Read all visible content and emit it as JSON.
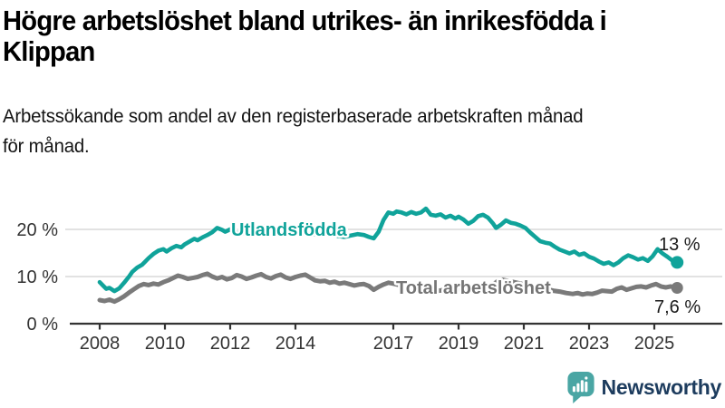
{
  "header": {
    "title_line1": "Högre arbetslöshet bland utrikes- än inrikesfödda i",
    "title_line2": "Klippan",
    "subtitle_line1": "Arbetssökande som andel av den registerbaserade arbetskraften månad",
    "subtitle_line2": "för månad."
  },
  "colors": {
    "teal": "#10a39a",
    "gray": "#7a7a7a",
    "gray_label": "#757575",
    "grid": "#d9d9d9",
    "axis": "#333333",
    "end_label": "#1a1a1a",
    "logo_teal": "#4aa6a4",
    "logo_navy": "#1d3c5e"
  },
  "chart_data": {
    "type": "line",
    "title": "Högre arbetslöshet bland utrikes- än inrikesfödda i Klippan",
    "subtitle": "Arbetssökande som andel av den registerbaserade arbetskraften månad för månad.",
    "xlabel": "",
    "ylabel": "",
    "xlim": [
      2007.9,
      2026.1
    ],
    "ylim": [
      0,
      26
    ],
    "grid": true,
    "legend_position": "inline-labels",
    "x_ticks": [
      {
        "value": 2008,
        "label": "2008"
      },
      {
        "value": 2010,
        "label": "2010"
      },
      {
        "value": 2012,
        "label": "2012"
      },
      {
        "value": 2014,
        "label": "2014"
      },
      {
        "value": 2017,
        "label": "2017"
      },
      {
        "value": 2019,
        "label": "2019"
      },
      {
        "value": 2021,
        "label": "2021"
      },
      {
        "value": 2023,
        "label": "2023"
      },
      {
        "value": 2025,
        "label": "2025"
      }
    ],
    "y_ticks": [
      {
        "value": 0,
        "label": "0 %"
      },
      {
        "value": 10,
        "label": "10 %"
      },
      {
        "value": 20,
        "label": "20 %"
      }
    ],
    "series": [
      {
        "name": "Utlandsfödda",
        "color": "#10a39a",
        "end_label": "13 %",
        "end_value": 13.0,
        "points": [
          [
            2008.0,
            8.8
          ],
          [
            2008.1,
            8.1
          ],
          [
            2008.2,
            7.4
          ],
          [
            2008.3,
            7.6
          ],
          [
            2008.45,
            6.9
          ],
          [
            2008.6,
            7.5
          ],
          [
            2008.75,
            8.7
          ],
          [
            2008.9,
            10.0
          ],
          [
            2009.0,
            11.0
          ],
          [
            2009.15,
            11.9
          ],
          [
            2009.3,
            12.5
          ],
          [
            2009.4,
            13.2
          ],
          [
            2009.5,
            13.9
          ],
          [
            2009.65,
            14.8
          ],
          [
            2009.8,
            15.5
          ],
          [
            2009.95,
            15.8
          ],
          [
            2010.05,
            15.3
          ],
          [
            2010.2,
            16.0
          ],
          [
            2010.35,
            16.5
          ],
          [
            2010.5,
            16.2
          ],
          [
            2010.6,
            16.8
          ],
          [
            2010.75,
            17.4
          ],
          [
            2010.9,
            18.0
          ],
          [
            2011.0,
            17.7
          ],
          [
            2011.15,
            18.3
          ],
          [
            2011.3,
            18.8
          ],
          [
            2011.45,
            19.4
          ],
          [
            2011.6,
            20.3
          ],
          [
            2011.75,
            19.9
          ],
          [
            2011.85,
            19.5
          ],
          [
            2012.0,
            20.0
          ],
          [
            2012.15,
            19.4
          ],
          [
            2012.3,
            19.0
          ],
          [
            2012.45,
            19.2
          ],
          [
            2012.6,
            19.7
          ],
          [
            2012.75,
            20.1
          ],
          [
            2012.9,
            20.4
          ],
          [
            2013.1,
            20.6
          ],
          [
            2013.3,
            20.2
          ],
          [
            2013.5,
            19.8
          ],
          [
            2013.7,
            19.4
          ],
          [
            2013.9,
            19.7
          ],
          [
            2014.1,
            19.9
          ],
          [
            2014.3,
            19.4
          ],
          [
            2014.5,
            18.9
          ],
          [
            2014.7,
            19.1
          ],
          [
            2014.9,
            19.3
          ],
          [
            2015.1,
            18.9
          ],
          [
            2015.3,
            18.6
          ],
          [
            2015.5,
            18.4
          ],
          [
            2015.7,
            18.7
          ],
          [
            2015.9,
            19.0
          ],
          [
            2016.1,
            18.8
          ],
          [
            2016.25,
            18.4
          ],
          [
            2016.4,
            18.1
          ],
          [
            2016.55,
            19.5
          ],
          [
            2016.7,
            22.0
          ],
          [
            2016.85,
            23.6
          ],
          [
            2017.0,
            23.3
          ],
          [
            2017.1,
            23.8
          ],
          [
            2017.25,
            23.6
          ],
          [
            2017.4,
            23.2
          ],
          [
            2017.55,
            23.7
          ],
          [
            2017.7,
            23.3
          ],
          [
            2017.85,
            23.6
          ],
          [
            2018.0,
            24.4
          ],
          [
            2018.15,
            23.1
          ],
          [
            2018.3,
            22.9
          ],
          [
            2018.45,
            23.2
          ],
          [
            2018.6,
            22.5
          ],
          [
            2018.75,
            22.9
          ],
          [
            2018.9,
            22.3
          ],
          [
            2019.0,
            22.7
          ],
          [
            2019.15,
            22.1
          ],
          [
            2019.3,
            21.2
          ],
          [
            2019.45,
            21.8
          ],
          [
            2019.6,
            22.8
          ],
          [
            2019.75,
            23.1
          ],
          [
            2019.9,
            22.5
          ],
          [
            2020.05,
            21.3
          ],
          [
            2020.15,
            20.3
          ],
          [
            2020.3,
            21.0
          ],
          [
            2020.45,
            21.9
          ],
          [
            2020.6,
            21.4
          ],
          [
            2020.75,
            21.2
          ],
          [
            2020.9,
            20.8
          ],
          [
            2021.05,
            20.3
          ],
          [
            2021.2,
            19.3
          ],
          [
            2021.35,
            18.4
          ],
          [
            2021.5,
            17.5
          ],
          [
            2021.65,
            17.2
          ],
          [
            2021.8,
            17.0
          ],
          [
            2021.95,
            16.3
          ],
          [
            2022.1,
            15.7
          ],
          [
            2022.25,
            15.3
          ],
          [
            2022.4,
            14.9
          ],
          [
            2022.55,
            15.3
          ],
          [
            2022.7,
            14.6
          ],
          [
            2022.85,
            14.9
          ],
          [
            2023.0,
            14.2
          ],
          [
            2023.15,
            13.8
          ],
          [
            2023.3,
            13.2
          ],
          [
            2023.45,
            12.7
          ],
          [
            2023.6,
            13.0
          ],
          [
            2023.75,
            12.4
          ],
          [
            2023.9,
            13.0
          ],
          [
            2024.05,
            13.9
          ],
          [
            2024.2,
            14.5
          ],
          [
            2024.35,
            14.1
          ],
          [
            2024.5,
            13.6
          ],
          [
            2024.65,
            13.9
          ],
          [
            2024.8,
            13.3
          ],
          [
            2024.95,
            14.3
          ],
          [
            2025.1,
            15.8
          ],
          [
            2025.25,
            14.9
          ],
          [
            2025.4,
            14.2
          ],
          [
            2025.55,
            13.4
          ],
          [
            2025.7,
            13.0
          ]
        ]
      },
      {
        "name": "Total arbetslöshet",
        "color": "#7a7a7a",
        "end_label": "7,6 %",
        "end_value": 7.6,
        "points": [
          [
            2008.0,
            5.0
          ],
          [
            2008.15,
            4.8
          ],
          [
            2008.3,
            5.1
          ],
          [
            2008.45,
            4.7
          ],
          [
            2008.6,
            5.2
          ],
          [
            2008.75,
            5.8
          ],
          [
            2008.9,
            6.6
          ],
          [
            2009.05,
            7.3
          ],
          [
            2009.2,
            8.0
          ],
          [
            2009.35,
            8.4
          ],
          [
            2009.5,
            8.2
          ],
          [
            2009.65,
            8.5
          ],
          [
            2009.8,
            8.3
          ],
          [
            2009.95,
            8.8
          ],
          [
            2010.1,
            9.2
          ],
          [
            2010.25,
            9.7
          ],
          [
            2010.4,
            10.2
          ],
          [
            2010.55,
            9.9
          ],
          [
            2010.7,
            9.5
          ],
          [
            2010.85,
            9.7
          ],
          [
            2011.0,
            9.9
          ],
          [
            2011.15,
            10.3
          ],
          [
            2011.3,
            10.6
          ],
          [
            2011.45,
            10.0
          ],
          [
            2011.6,
            9.6
          ],
          [
            2011.75,
            9.9
          ],
          [
            2011.9,
            9.4
          ],
          [
            2012.05,
            9.7
          ],
          [
            2012.2,
            10.3
          ],
          [
            2012.35,
            10.0
          ],
          [
            2012.5,
            9.5
          ],
          [
            2012.65,
            9.8
          ],
          [
            2012.8,
            10.2
          ],
          [
            2012.95,
            10.5
          ],
          [
            2013.1,
            9.9
          ],
          [
            2013.25,
            9.6
          ],
          [
            2013.4,
            10.1
          ],
          [
            2013.55,
            10.4
          ],
          [
            2013.7,
            9.8
          ],
          [
            2013.85,
            9.5
          ],
          [
            2014.0,
            9.9
          ],
          [
            2014.15,
            10.2
          ],
          [
            2014.3,
            10.4
          ],
          [
            2014.45,
            9.8
          ],
          [
            2014.6,
            9.2
          ],
          [
            2014.75,
            9.0
          ],
          [
            2014.9,
            9.1
          ],
          [
            2015.05,
            8.7
          ],
          [
            2015.2,
            8.9
          ],
          [
            2015.35,
            8.5
          ],
          [
            2015.5,
            8.7
          ],
          [
            2015.65,
            8.4
          ],
          [
            2015.8,
            8.1
          ],
          [
            2015.95,
            8.3
          ],
          [
            2016.1,
            8.4
          ],
          [
            2016.25,
            8.0
          ],
          [
            2016.4,
            7.2
          ],
          [
            2016.55,
            7.8
          ],
          [
            2016.7,
            8.3
          ],
          [
            2016.85,
            8.7
          ],
          [
            2017.0,
            8.5
          ],
          [
            2017.2,
            8.2
          ],
          [
            2017.4,
            7.9
          ],
          [
            2017.6,
            7.7
          ],
          [
            2017.8,
            7.5
          ],
          [
            2018.0,
            7.3
          ],
          [
            2018.2,
            7.2
          ],
          [
            2018.4,
            7.0
          ],
          [
            2018.6,
            7.2
          ],
          [
            2018.8,
            7.4
          ],
          [
            2019.0,
            7.3
          ],
          [
            2019.2,
            7.2
          ],
          [
            2019.4,
            7.4
          ],
          [
            2019.6,
            7.6
          ],
          [
            2019.8,
            7.7
          ],
          [
            2020.0,
            8.0
          ],
          [
            2020.2,
            9.0
          ],
          [
            2020.35,
            9.3
          ],
          [
            2020.5,
            9.1
          ],
          [
            2020.7,
            8.8
          ],
          [
            2020.9,
            8.5
          ],
          [
            2021.1,
            8.2
          ],
          [
            2021.3,
            7.9
          ],
          [
            2021.5,
            7.6
          ],
          [
            2021.7,
            7.3
          ],
          [
            2021.9,
            7.0
          ],
          [
            2022.1,
            6.8
          ],
          [
            2022.3,
            6.5
          ],
          [
            2022.5,
            6.3
          ],
          [
            2022.65,
            6.5
          ],
          [
            2022.8,
            6.2
          ],
          [
            2022.95,
            6.4
          ],
          [
            2023.1,
            6.3
          ],
          [
            2023.25,
            6.6
          ],
          [
            2023.4,
            7.0
          ],
          [
            2023.55,
            6.9
          ],
          [
            2023.7,
            6.8
          ],
          [
            2023.85,
            7.4
          ],
          [
            2024.0,
            7.7
          ],
          [
            2024.15,
            7.2
          ],
          [
            2024.3,
            7.5
          ],
          [
            2024.45,
            7.8
          ],
          [
            2024.6,
            7.9
          ],
          [
            2024.75,
            7.7
          ],
          [
            2024.9,
            8.1
          ],
          [
            2025.05,
            8.4
          ],
          [
            2025.2,
            7.9
          ],
          [
            2025.35,
            7.7
          ],
          [
            2025.5,
            7.9
          ],
          [
            2025.7,
            7.6
          ]
        ]
      }
    ]
  },
  "branding": {
    "logo_text": "Newsworthy"
  }
}
